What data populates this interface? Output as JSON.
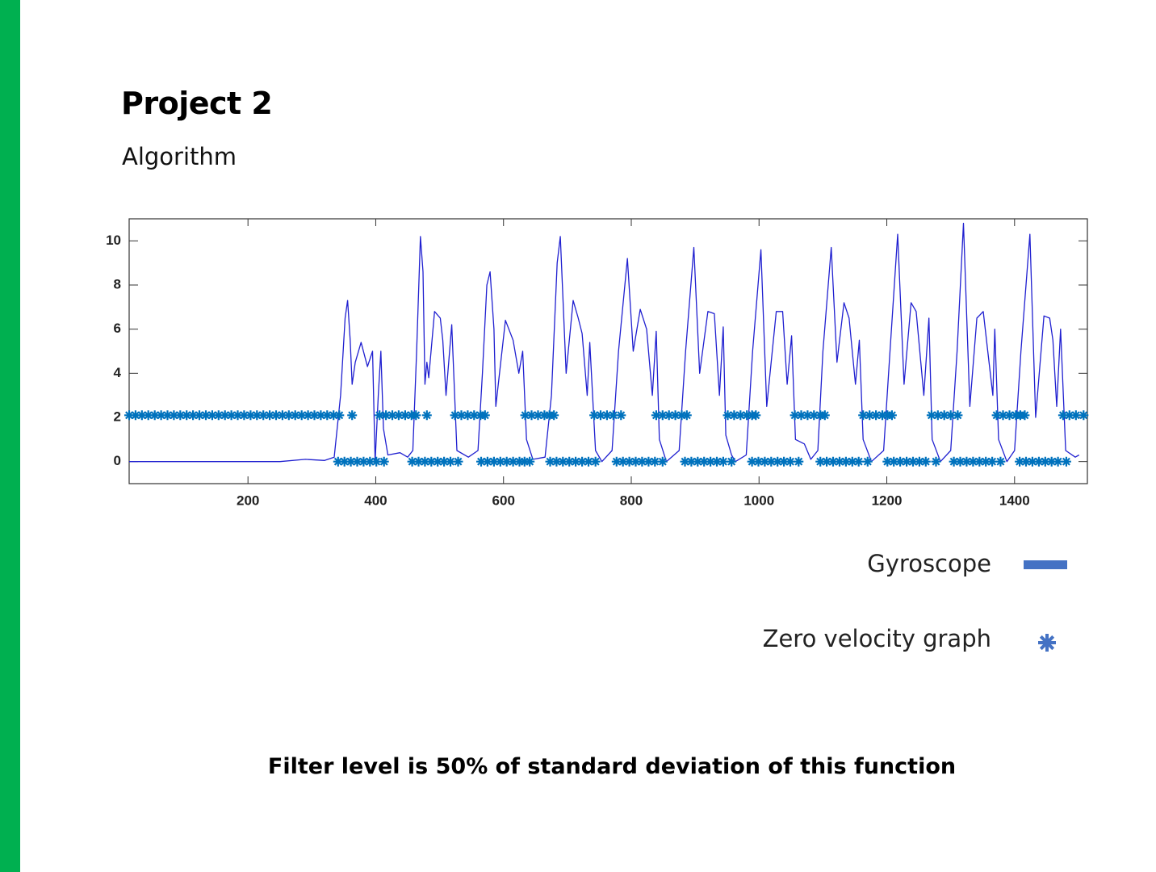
{
  "title": "Project 2",
  "subtitle": "Algorithm",
  "footer": "Filter level is 50% of standard deviation of this function",
  "chart_data": {
    "type": "line",
    "xlim": [
      14,
      1514
    ],
    "ylim": [
      -1,
      11
    ],
    "xticks": [
      200,
      400,
      600,
      800,
      1000,
      1200,
      1400
    ],
    "yticks": [
      0,
      2,
      4,
      6,
      8,
      10
    ],
    "box": true,
    "legend": "bottom-right",
    "legend_color": "#4472c4",
    "series": [
      {
        "name": "Gyroscope",
        "type": "line",
        "color": "#2020d0",
        "x": [
          14,
          100,
          200,
          250,
          290,
          320,
          335,
          345,
          352,
          356,
          360,
          363,
          368,
          377,
          387,
          395,
          399,
          404,
          408,
          412,
          419,
          438,
          450,
          458,
          464,
          470,
          474,
          477,
          480,
          483,
          492,
          501,
          505,
          510,
          519,
          527,
          545,
          560,
          567,
          574,
          579,
          585,
          588,
          603,
          615,
          624,
          630,
          636,
          646,
          665,
          675,
          684,
          689,
          698,
          709,
          717,
          723,
          731,
          735,
          744,
          754,
          770,
          780,
          794,
          803,
          814,
          824,
          833,
          839,
          844,
          855,
          875,
          885,
          898,
          907,
          920,
          930,
          938,
          944,
          948,
          957,
          963,
          980,
          990,
          1003,
          1012,
          1027,
          1037,
          1044,
          1051,
          1057,
          1071,
          1081,
          1092,
          1100,
          1113,
          1122,
          1133,
          1141,
          1151,
          1157,
          1163,
          1176,
          1195,
          1205,
          1217,
          1227,
          1238,
          1246,
          1258,
          1266,
          1271,
          1284,
          1300,
          1310,
          1320,
          1330,
          1341,
          1351,
          1358,
          1366,
          1369,
          1375,
          1388,
          1400,
          1410,
          1424,
          1433,
          1446,
          1455,
          1460,
          1466,
          1472,
          1480,
          1495,
          1501
        ],
        "values": [
          0,
          0,
          0,
          0,
          0.1,
          0.05,
          0.2,
          3,
          6.5,
          7.3,
          5.5,
          3.5,
          4.5,
          5.4,
          4.3,
          5,
          0,
          3,
          5,
          1.5,
          0.3,
          0.4,
          0.2,
          0.5,
          5,
          10.2,
          8.6,
          3.5,
          4.5,
          3.8,
          6.8,
          6.5,
          5.5,
          3,
          6.2,
          0.5,
          0.2,
          0.5,
          4,
          8,
          8.6,
          6,
          2.5,
          6.4,
          5.5,
          4,
          5,
          1,
          0.1,
          0.2,
          3,
          9,
          10.2,
          4,
          7.3,
          6.5,
          5.8,
          3,
          5.4,
          0.5,
          0,
          0.5,
          5,
          9.2,
          5,
          6.9,
          6,
          3,
          5.9,
          1,
          0,
          0.5,
          5,
          9.7,
          4,
          6.8,
          6.7,
          3,
          6.1,
          1.2,
          0.3,
          0,
          0.3,
          5,
          9.6,
          2.5,
          6.8,
          6.8,
          3.5,
          5.7,
          1,
          0.8,
          0.1,
          0.5,
          5,
          9.7,
          4.5,
          7.2,
          6.5,
          3.5,
          5.5,
          1,
          0,
          0.5,
          5,
          10.3,
          3.5,
          7.2,
          6.8,
          3,
          6.5,
          1,
          0,
          0.5,
          5,
          10.8,
          2.5,
          6.5,
          6.8,
          5,
          3,
          6,
          1,
          0,
          0.5,
          5,
          10.3,
          2,
          6.6,
          6.5,
          5.5,
          2.5,
          6,
          0.5,
          0.2,
          0.3
        ]
      },
      {
        "name": "Zero velocity graph",
        "type": "scatter",
        "marker": "asterisk",
        "color": "#0072bd",
        "x": [
          14,
          24,
          34,
          44,
          54,
          64,
          74,
          84,
          94,
          104,
          114,
          124,
          134,
          144,
          154,
          164,
          174,
          184,
          194,
          204,
          214,
          224,
          234,
          244,
          254,
          264,
          274,
          284,
          294,
          304,
          314,
          324,
          334,
          343,
          363,
          406,
          416,
          426,
          436,
          446,
          456,
          463,
          480,
          524,
          534,
          544,
          554,
          564,
          571,
          634,
          644,
          654,
          664,
          672,
          679,
          742,
          752,
          762,
          772,
          784,
          839,
          849,
          859,
          869,
          879,
          887,
          951,
          961,
          971,
          981,
          989,
          995,
          1056,
          1066,
          1076,
          1086,
          1096,
          1103,
          1163,
          1173,
          1183,
          1193,
          1201,
          1208,
          1270,
          1280,
          1290,
          1300,
          1311,
          1372,
          1382,
          1392,
          1402,
          1409,
          1416,
          1476,
          1486,
          1496,
          1508,
          341,
          351,
          361,
          371,
          381,
          391,
          401,
          413,
          457,
          467,
          477,
          487,
          497,
          507,
          517,
          529,
          565,
          575,
          585,
          595,
          605,
          615,
          625,
          633,
          641,
          673,
          683,
          693,
          703,
          713,
          723,
          733,
          744,
          777,
          787,
          797,
          807,
          817,
          827,
          837,
          849,
          884,
          894,
          904,
          914,
          924,
          934,
          944,
          957,
          989,
          999,
          1009,
          1019,
          1029,
          1039,
          1049,
          1062,
          1096,
          1106,
          1116,
          1126,
          1136,
          1146,
          1156,
          1170,
          1201,
          1211,
          1221,
          1231,
          1241,
          1251,
          1261,
          1277,
          1305,
          1315,
          1325,
          1335,
          1345,
          1355,
          1365,
          1378,
          1408,
          1418,
          1428,
          1438,
          1448,
          1458,
          1468,
          1481
        ],
        "values": [
          2.1,
          2.1,
          2.1,
          2.1,
          2.1,
          2.1,
          2.1,
          2.1,
          2.1,
          2.1,
          2.1,
          2.1,
          2.1,
          2.1,
          2.1,
          2.1,
          2.1,
          2.1,
          2.1,
          2.1,
          2.1,
          2.1,
          2.1,
          2.1,
          2.1,
          2.1,
          2.1,
          2.1,
          2.1,
          2.1,
          2.1,
          2.1,
          2.1,
          2.1,
          2.1,
          2.1,
          2.1,
          2.1,
          2.1,
          2.1,
          2.1,
          2.1,
          2.1,
          2.1,
          2.1,
          2.1,
          2.1,
          2.1,
          2.1,
          2.1,
          2.1,
          2.1,
          2.1,
          2.1,
          2.1,
          2.1,
          2.1,
          2.1,
          2.1,
          2.1,
          2.1,
          2.1,
          2.1,
          2.1,
          2.1,
          2.1,
          2.1,
          2.1,
          2.1,
          2.1,
          2.1,
          2.1,
          2.1,
          2.1,
          2.1,
          2.1,
          2.1,
          2.1,
          2.1,
          2.1,
          2.1,
          2.1,
          2.1,
          2.1,
          2.1,
          2.1,
          2.1,
          2.1,
          2.1,
          2.1,
          2.1,
          2.1,
          2.1,
          2.1,
          2.1,
          2.1,
          2.1,
          2.1,
          2.1,
          0,
          0,
          0,
          0,
          0,
          0,
          0,
          0,
          0,
          0,
          0,
          0,
          0,
          0,
          0,
          0,
          0,
          0,
          0,
          0,
          0,
          0,
          0,
          0,
          0,
          0,
          0,
          0,
          0,
          0,
          0,
          0,
          0,
          0,
          0,
          0,
          0,
          0,
          0,
          0,
          0,
          0,
          0,
          0,
          0,
          0,
          0,
          0,
          0,
          0,
          0,
          0,
          0,
          0,
          0,
          0,
          0,
          0,
          0,
          0,
          0,
          0,
          0,
          0,
          0,
          0,
          0,
          0,
          0,
          0,
          0,
          0,
          0,
          0,
          0,
          0,
          0,
          0,
          0,
          0,
          0,
          0,
          0,
          0,
          0,
          0,
          0,
          0,
          0
        ]
      }
    ]
  }
}
